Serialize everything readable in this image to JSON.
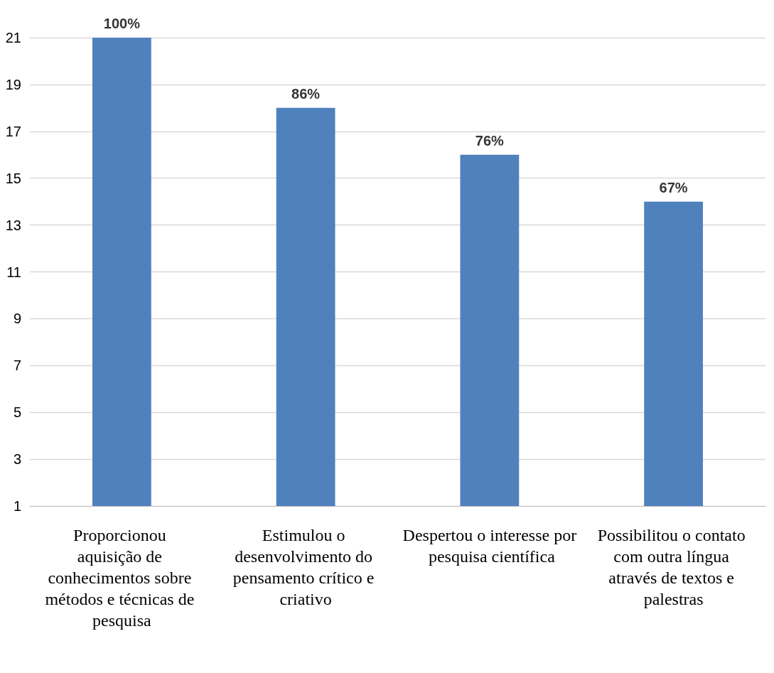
{
  "chart_data": {
    "type": "bar",
    "categories": [
      "Proporcionou aquisição de conhecimentos sobre métodos e técnicas de pesquisa",
      "Estimulou o desenvolvimento do pensamento crítico e criativo",
      "Despertou o interesse por pesquisa científica",
      "Possibilitou o contato com outra língua através de textos e palestras"
    ],
    "values": [
      21,
      18,
      16,
      14
    ],
    "annotations": [
      {
        "text": "100%",
        "x": "Proporcionou aquisição de conhecimentos sobre métodos e técnicas de pesquisa",
        "y": 21
      },
      {
        "text": "86%",
        "x": "Estimulou o desenvolvimento do pensamento crítico e criativo",
        "y": 18
      },
      {
        "text": "76%",
        "x": "Despertou o interesse por pesquisa científica",
        "y": 16
      },
      {
        "text": "67%",
        "x": "Possibilitou o contato com outra língua através de textos e palestras",
        "y": 14
      }
    ],
    "color": "#4f81bd",
    "ylim": [
      1,
      21
    ],
    "yticks": [
      1,
      3,
      5,
      7,
      9,
      11,
      13,
      15,
      17,
      19,
      21
    ],
    "grid": "y"
  }
}
